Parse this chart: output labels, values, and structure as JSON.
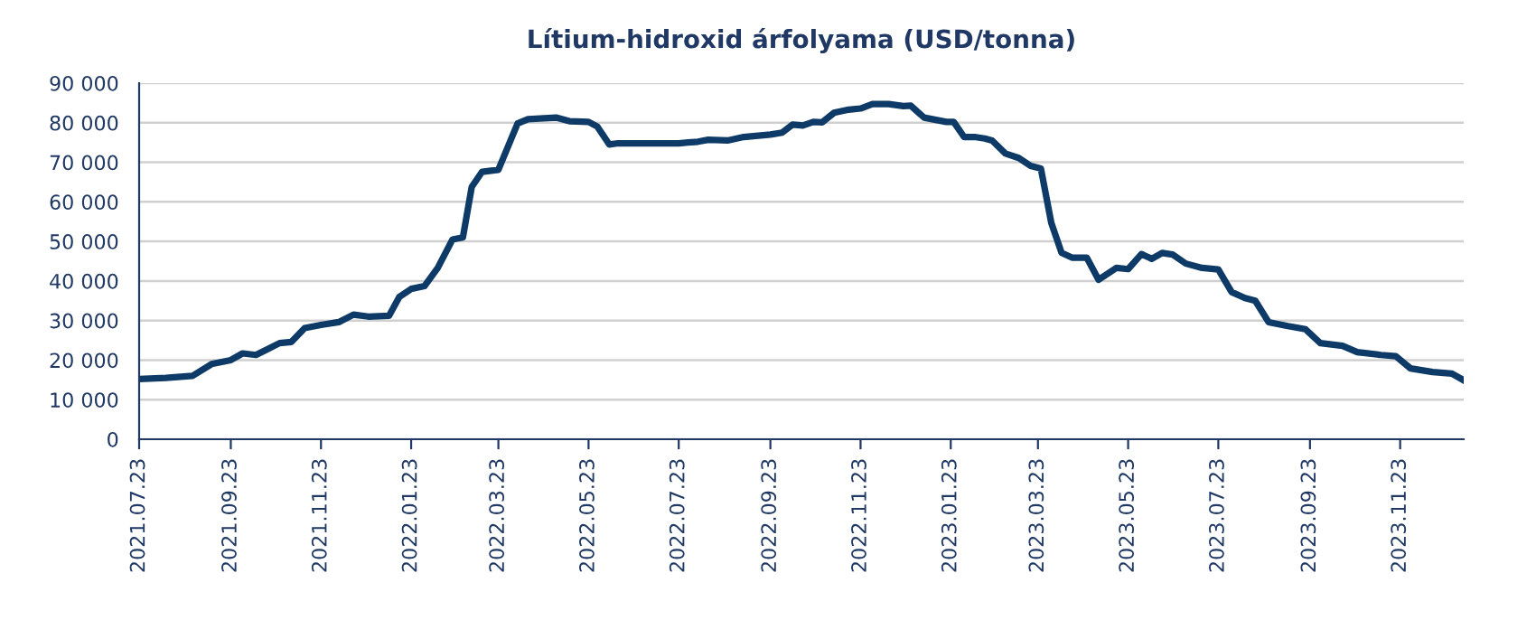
{
  "chart_data": {
    "type": "line",
    "title": "Lítium-hidroxid árfolyama (USD/tonna)",
    "x": [
      "2021-07-23",
      "2021-08-10",
      "2021-08-28",
      "2021-09-10",
      "2021-09-23",
      "2021-10-01",
      "2021-10-10",
      "2021-10-18",
      "2021-10-26",
      "2021-11-03",
      "2021-11-12",
      "2021-11-23",
      "2021-12-05",
      "2021-12-15",
      "2021-12-25",
      "2022-01-08",
      "2022-01-15",
      "2022-01-23",
      "2022-02-01",
      "2022-02-10",
      "2022-02-20",
      "2022-02-27",
      "2022-03-05",
      "2022-03-12",
      "2022-03-23",
      "2022-04-05",
      "2022-04-12",
      "2022-05-01",
      "2022-05-10",
      "2022-05-23",
      "2022-05-29",
      "2022-06-06",
      "2022-06-12",
      "2022-07-23",
      "2022-08-05",
      "2022-08-12",
      "2022-08-25",
      "2022-09-05",
      "2022-09-23",
      "2022-10-01",
      "2022-10-08",
      "2022-10-15",
      "2022-10-22",
      "2022-10-28",
      "2022-11-05",
      "2022-11-15",
      "2022-11-23",
      "2022-12-01",
      "2022-12-12",
      "2022-12-22",
      "2022-12-27",
      "2023-01-05",
      "2023-01-20",
      "2023-01-25",
      "2023-02-01",
      "2023-02-08",
      "2023-02-15",
      "2023-02-20",
      "2023-03-01",
      "2023-03-10",
      "2023-03-18",
      "2023-03-25",
      "2023-04-01",
      "2023-04-08",
      "2023-04-15",
      "2023-04-25",
      "2023-05-03",
      "2023-05-15",
      "2023-05-23",
      "2023-06-01",
      "2023-06-08",
      "2023-06-15",
      "2023-06-22",
      "2023-07-01",
      "2023-07-12",
      "2023-07-23",
      "2023-08-01",
      "2023-08-10",
      "2023-08-17",
      "2023-08-26",
      "2023-09-08",
      "2023-09-20",
      "2023-09-30",
      "2023-10-15",
      "2023-10-25",
      "2023-11-10",
      "2023-11-20",
      "2023-11-30",
      "2023-12-15",
      "2023-12-28",
      "2024-01-05"
    ],
    "series": [
      {
        "color": "#0d3a66",
        "values": [
          15200,
          15500,
          16000,
          19000,
          20000,
          21700,
          21300,
          22800,
          24300,
          24600,
          28100,
          28900,
          29600,
          31500,
          31000,
          31200,
          36000,
          38000,
          38700,
          43300,
          50500,
          51000,
          63800,
          67600,
          68100,
          79800,
          80900,
          81300,
          80400,
          80200,
          79000,
          74500,
          74800,
          74800,
          75200,
          75700,
          75500,
          76400,
          77000,
          77500,
          79500,
          79300,
          80200,
          80100,
          82500,
          83300,
          83600,
          84700,
          84700,
          84200,
          84300,
          81300,
          80200,
          80200,
          76400,
          76400,
          76000,
          75500,
          72200,
          71100,
          69100,
          68400,
          54700,
          47100,
          45900,
          45900,
          40300,
          43300,
          43000,
          46800,
          45600,
          47100,
          46700,
          44400,
          43300,
          42900,
          37200,
          35700,
          35000,
          29600,
          28600,
          27800,
          24300,
          23600,
          22000,
          21300,
          21000,
          17900,
          17000,
          16600,
          14900
        ]
      }
    ],
    "xlim": [
      "2021-07-23",
      "2024-01-05"
    ],
    "xticks": [
      {
        "value": "2021-07-23",
        "label": "2021.07.23"
      },
      {
        "value": "2021-09-23",
        "label": "2021.09.23"
      },
      {
        "value": "2021-11-23",
        "label": "2021.11.23"
      },
      {
        "value": "2022-01-23",
        "label": "2022.01.23"
      },
      {
        "value": "2022-03-23",
        "label": "2022.03.23"
      },
      {
        "value": "2022-05-23",
        "label": "2022.05.23"
      },
      {
        "value": "2022-07-23",
        "label": "2022.07.23"
      },
      {
        "value": "2022-09-23",
        "label": "2022.09.23"
      },
      {
        "value": "2022-11-23",
        "label": "2022.11.23"
      },
      {
        "value": "2023-01-23",
        "label": "2023.01.23"
      },
      {
        "value": "2023-03-23",
        "label": "2023.03.23"
      },
      {
        "value": "2023-05-23",
        "label": "2023.05.23"
      },
      {
        "value": "2023-07-23",
        "label": "2023.07.23"
      },
      {
        "value": "2023-09-23",
        "label": "2023.09.23"
      },
      {
        "value": "2023-11-23",
        "label": "2023.11.23"
      }
    ],
    "ylim": [
      0,
      90000
    ],
    "yticks": [
      {
        "value": 0,
        "label": "0"
      },
      {
        "value": 10000,
        "label": "10 000"
      },
      {
        "value": 20000,
        "label": "20 000"
      },
      {
        "value": 30000,
        "label": "30 000"
      },
      {
        "value": 40000,
        "label": "40 000"
      },
      {
        "value": 50000,
        "label": "50 000"
      },
      {
        "value": 60000,
        "label": "60 000"
      },
      {
        "value": 70000,
        "label": "70 000"
      },
      {
        "value": 80000,
        "label": "80 000"
      },
      {
        "value": 90000,
        "label": "90 000"
      }
    ],
    "grid": "y",
    "marker": "none",
    "line_style": "solid"
  }
}
